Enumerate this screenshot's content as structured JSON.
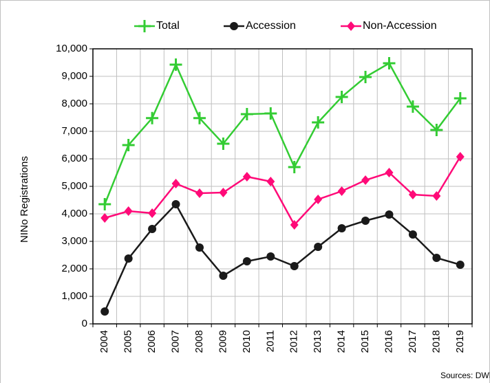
{
  "chart_data": {
    "type": "line",
    "y_label": "NINo Registrations",
    "source": "Sources: DWP",
    "categories": [
      "2004",
      "2005",
      "2006",
      "2007",
      "2008",
      "2009",
      "2010",
      "2011",
      "2012",
      "2013",
      "2014",
      "2015",
      "2016",
      "2017",
      "2018",
      "2019"
    ],
    "series": [
      {
        "name": "Total",
        "color": "#33cc33",
        "marker": "plus",
        "values": [
          4350,
          6500,
          7480,
          9425,
          7480,
          6550,
          7625,
          7650,
          5700,
          7325,
          8250,
          8975,
          9475,
          7900,
          7050,
          8200
        ]
      },
      {
        "name": "Accession",
        "color": "#1a1a1a",
        "marker": "circle",
        "values": [
          450,
          2375,
          3450,
          4350,
          2775,
          1750,
          2275,
          2450,
          2100,
          2800,
          3475,
          3750,
          3975,
          3250,
          2400,
          2150
        ]
      },
      {
        "name": "Non-Accession",
        "color": "#ff0a78",
        "marker": "diamond",
        "values": [
          3850,
          4100,
          4025,
          5100,
          4750,
          4775,
          5350,
          5175,
          3600,
          4525,
          4825,
          5225,
          5500,
          4700,
          4650,
          6075
        ]
      }
    ],
    "ylim": [
      0,
      10000
    ],
    "yticks": [
      0,
      {
        "value": 1000,
        "label": "1,000"
      },
      {
        "value": 2000,
        "label": "2,000"
      },
      {
        "value": 3000,
        "label": "3,000"
      },
      {
        "value": 4000,
        "label": "4,000"
      },
      {
        "value": 5000,
        "label": "5,000"
      },
      {
        "value": 6000,
        "label": "6,000"
      },
      {
        "value": 7000,
        "label": "7,000"
      },
      {
        "value": 8000,
        "label": "8,000"
      },
      {
        "value": 9000,
        "label": "9,000"
      },
      {
        "value": 10000,
        "label": "10,000"
      }
    ],
    "grid": true,
    "legend": "top"
  }
}
